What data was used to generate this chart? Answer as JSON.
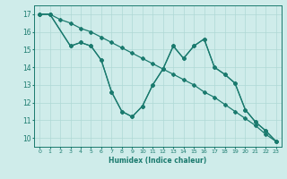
{
  "series_a_x": [
    0,
    1,
    2,
    3,
    4,
    5,
    6,
    7,
    8,
    9,
    10,
    11,
    12,
    13,
    14,
    15,
    16,
    17,
    18,
    19,
    20,
    21,
    22,
    23
  ],
  "series_a_y": [
    17.0,
    17.0,
    16.7,
    16.5,
    16.2,
    16.0,
    15.7,
    15.4,
    15.1,
    14.8,
    14.5,
    14.2,
    13.9,
    13.6,
    13.3,
    13.0,
    12.6,
    12.3,
    11.9,
    11.5,
    11.1,
    10.7,
    10.2,
    9.8
  ],
  "series_b_x": [
    0,
    1,
    3,
    4,
    5,
    6,
    7,
    8,
    9,
    10,
    11,
    12,
    13,
    14,
    15,
    16,
    17,
    18,
    19,
    20,
    21,
    22,
    23
  ],
  "series_b_y": [
    17.0,
    17.0,
    15.2,
    15.4,
    15.2,
    14.4,
    12.6,
    11.5,
    11.2,
    11.8,
    13.0,
    13.9,
    15.2,
    14.5,
    15.2,
    15.6,
    14.0,
    13.6,
    13.1,
    11.6,
    10.9,
    10.4,
    9.8
  ],
  "series_c_x": [
    0,
    1,
    3,
    4,
    5,
    6,
    7,
    8,
    9,
    10,
    11,
    12,
    13,
    14,
    15,
    16,
    17,
    18,
    19,
    20,
    21,
    22,
    23
  ],
  "series_c_y": [
    17.0,
    17.0,
    15.2,
    15.4,
    15.2,
    14.4,
    12.6,
    11.5,
    11.2,
    11.8,
    13.0,
    13.9,
    15.2,
    14.5,
    15.2,
    15.6,
    14.0,
    13.6,
    13.1,
    11.6,
    10.9,
    10.4,
    9.8
  ],
  "xlabel": "Humidex (Indice chaleur)",
  "xlim": [
    -0.5,
    23.5
  ],
  "ylim": [
    9.5,
    17.5
  ],
  "yticks": [
    10,
    11,
    12,
    13,
    14,
    15,
    16,
    17
  ],
  "xticks": [
    0,
    1,
    2,
    3,
    4,
    5,
    6,
    7,
    8,
    9,
    10,
    11,
    12,
    13,
    14,
    15,
    16,
    17,
    18,
    19,
    20,
    21,
    22,
    23
  ],
  "bg_color": "#cfecea",
  "grid_color": "#aed8d5",
  "line_color": "#1a7a6e",
  "tick_color": "#1a7a6e",
  "label_color": "#1a7a6e"
}
